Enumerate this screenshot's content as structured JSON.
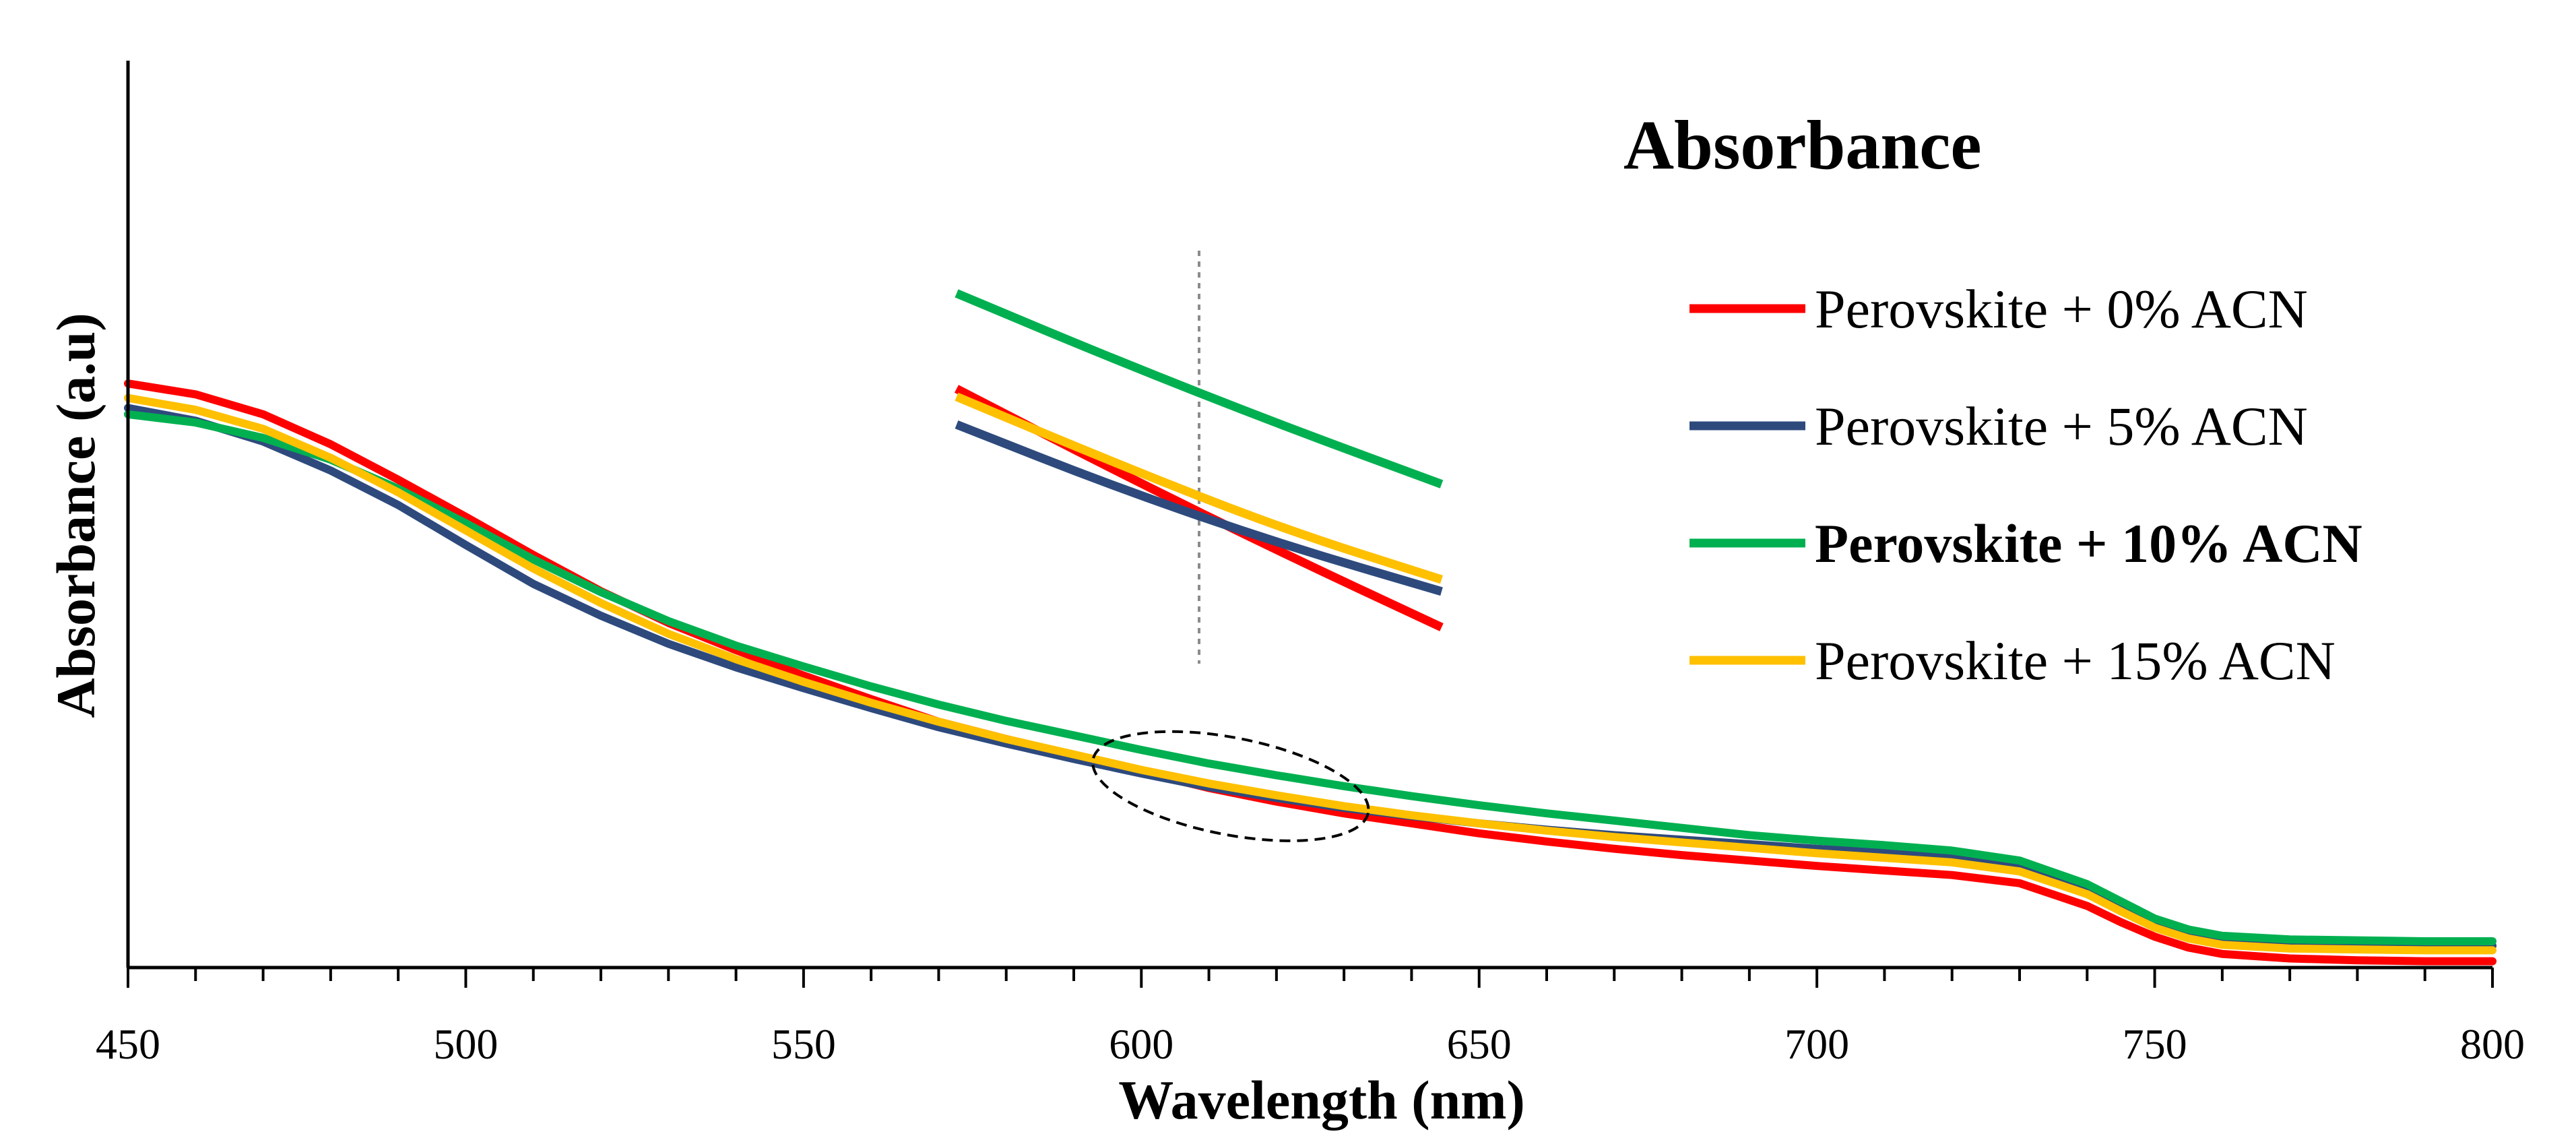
{
  "chart_data": {
    "type": "line",
    "title": "Absorbance",
    "xlabel": "Wavelength (nm)",
    "ylabel": "Absorbance (a.u)",
    "xlim": [
      450,
      800
    ],
    "ylim": [
      0,
      1
    ],
    "x_ticks": [
      "450",
      "500",
      "550",
      "600",
      "650",
      "700",
      "750",
      "800"
    ],
    "legend_position": "top-right",
    "grid": false,
    "series": [
      {
        "name": "Perovskite + 0% ACN",
        "color": "#ff0000",
        "bold": false,
        "x": [
          450,
          460,
          470,
          480,
          490,
          500,
          510,
          520,
          530,
          540,
          550,
          560,
          570,
          580,
          590,
          600,
          610,
          620,
          630,
          640,
          650,
          660,
          670,
          680,
          690,
          700,
          710,
          720,
          730,
          740,
          745,
          750,
          755,
          760,
          770,
          780,
          790,
          800
        ],
        "y": [
          0.644,
          0.632,
          0.61,
          0.577,
          0.538,
          0.497,
          0.455,
          0.415,
          0.38,
          0.35,
          0.322,
          0.296,
          0.271,
          0.252,
          0.234,
          0.216,
          0.198,
          0.183,
          0.17,
          0.159,
          0.148,
          0.139,
          0.131,
          0.124,
          0.118,
          0.112,
          0.107,
          0.102,
          0.093,
          0.068,
          0.05,
          0.034,
          0.022,
          0.015,
          0.01,
          0.008,
          0.007,
          0.007
        ]
      },
      {
        "name": "Perovskite + 5% ACN",
        "color": "#2e4a7d",
        "bold": false,
        "x": [
          450,
          460,
          470,
          480,
          490,
          500,
          510,
          520,
          530,
          540,
          550,
          560,
          570,
          580,
          590,
          600,
          610,
          620,
          630,
          640,
          650,
          660,
          670,
          680,
          690,
          700,
          710,
          720,
          730,
          740,
          745,
          750,
          755,
          760,
          770,
          780,
          790,
          800
        ],
        "y": [
          0.617,
          0.603,
          0.58,
          0.548,
          0.51,
          0.466,
          0.423,
          0.388,
          0.357,
          0.331,
          0.308,
          0.286,
          0.265,
          0.247,
          0.23,
          0.214,
          0.199,
          0.187,
          0.176,
          0.167,
          0.159,
          0.152,
          0.146,
          0.141,
          0.136,
          0.131,
          0.127,
          0.122,
          0.112,
          0.087,
          0.068,
          0.049,
          0.037,
          0.03,
          0.026,
          0.025,
          0.024,
          0.024
        ]
      },
      {
        "name": "Perovskite + 10% ACN",
        "color": "#00b050",
        "bold": true,
        "x": [
          450,
          460,
          470,
          480,
          490,
          500,
          510,
          520,
          530,
          540,
          550,
          560,
          570,
          580,
          590,
          600,
          610,
          620,
          630,
          640,
          650,
          660,
          670,
          680,
          690,
          700,
          710,
          720,
          730,
          740,
          745,
          750,
          755,
          760,
          770,
          780,
          790,
          800
        ],
        "y": [
          0.61,
          0.601,
          0.584,
          0.56,
          0.528,
          0.49,
          0.45,
          0.414,
          0.382,
          0.355,
          0.332,
          0.31,
          0.29,
          0.272,
          0.256,
          0.24,
          0.225,
          0.212,
          0.2,
          0.189,
          0.179,
          0.17,
          0.162,
          0.154,
          0.146,
          0.14,
          0.135,
          0.129,
          0.118,
          0.092,
          0.073,
          0.054,
          0.042,
          0.035,
          0.031,
          0.03,
          0.029,
          0.029
        ]
      },
      {
        "name": "Perovskite + 15% ACN",
        "color": "#ffc000",
        "bold": false,
        "x": [
          450,
          460,
          470,
          480,
          490,
          500,
          510,
          520,
          530,
          540,
          550,
          560,
          570,
          580,
          590,
          600,
          610,
          620,
          630,
          640,
          650,
          660,
          670,
          680,
          690,
          700,
          710,
          720,
          730,
          740,
          745,
          750,
          755,
          760,
          770,
          780,
          790,
          800
        ],
        "y": [
          0.628,
          0.615,
          0.594,
          0.562,
          0.524,
          0.482,
          0.44,
          0.402,
          0.368,
          0.34,
          0.315,
          0.292,
          0.271,
          0.252,
          0.235,
          0.218,
          0.203,
          0.19,
          0.178,
          0.168,
          0.159,
          0.151,
          0.144,
          0.138,
          0.132,
          0.126,
          0.121,
          0.116,
          0.106,
          0.081,
          0.062,
          0.044,
          0.032,
          0.025,
          0.021,
          0.02,
          0.019,
          0.019
        ]
      }
    ],
    "annotations": {
      "highlight_ellipse": {
        "center_x": 618,
        "center_y": 0.2,
        "note": "region magnified in inset"
      },
      "inset": {
        "x_range": [
          596,
          620
        ],
        "marker_x": 608,
        "series": {
          "Perovskite + 0% ACN": [
            0.24,
            0.219,
            0.199,
            0.18
          ],
          "Perovskite + 5% ACN": [
            0.231,
            0.215,
            0.201,
            0.189
          ],
          "Perovskite + 10% ACN": [
            0.264,
            0.247,
            0.231,
            0.216
          ],
          "Perovskite + 15% ACN": [
            0.238,
            0.221,
            0.205,
            0.192
          ]
        }
      }
    }
  }
}
